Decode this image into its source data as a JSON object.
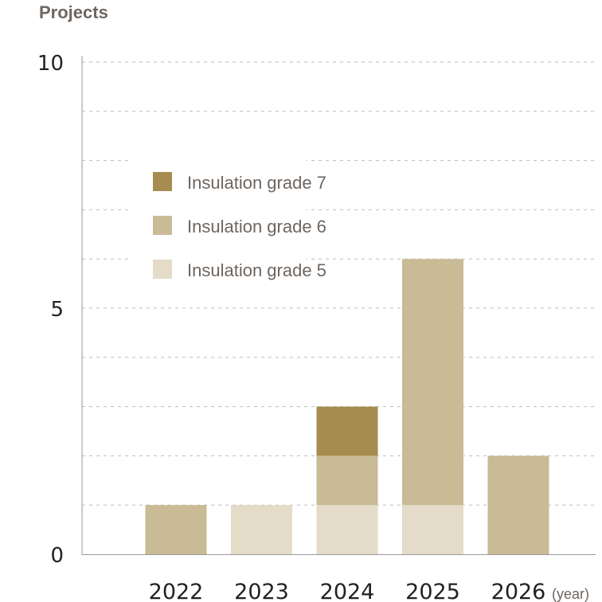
{
  "chart_data": {
    "type": "bar",
    "stacked": true,
    "ylabel": "Projects",
    "xunit": "(year)",
    "ylim": [
      0,
      10
    ],
    "yticks": [
      0,
      5,
      10
    ],
    "grid": true,
    "legend_position": "upper-left inside plot",
    "categories": [
      "2022",
      "2023",
      "2024",
      "2025",
      "2026"
    ],
    "series": [
      {
        "name": "Insulation grade 5",
        "color": "#e4dcc9",
        "values": [
          0,
          1,
          1,
          1,
          0
        ]
      },
      {
        "name": "Insulation grade 6",
        "color": "#c8bb95",
        "values": [
          1,
          0,
          1,
          5,
          2
        ]
      },
      {
        "name": "Insulation grade 7",
        "color": "#a68c4e",
        "values": [
          0,
          0,
          1,
          0,
          0
        ]
      }
    ],
    "legend_order": [
      "Insulation grade 7",
      "Insulation grade 6",
      "Insulation grade 5"
    ]
  }
}
